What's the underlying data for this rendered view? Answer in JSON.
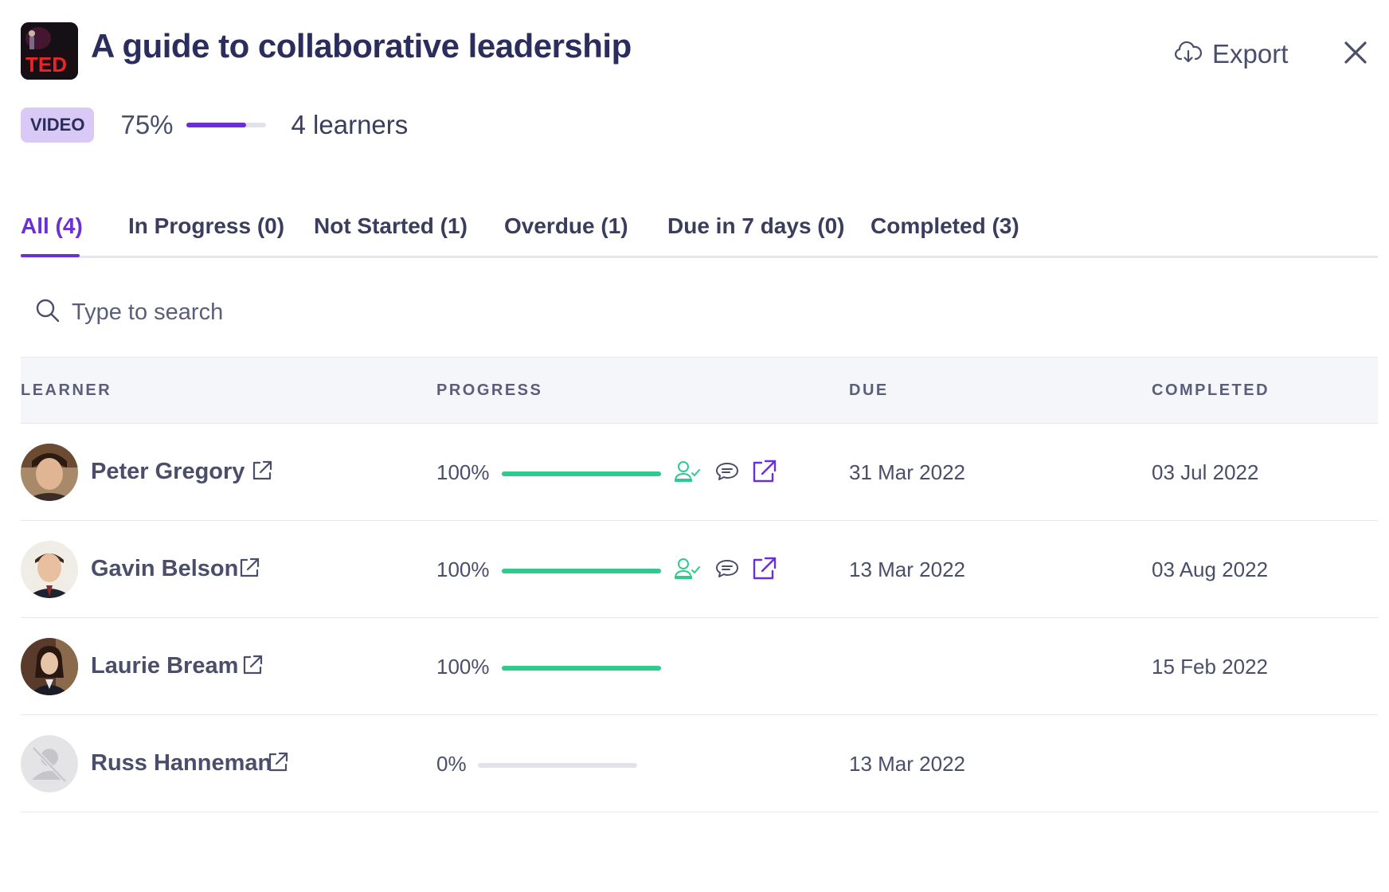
{
  "header": {
    "title": "A guide to collaborative leadership",
    "thumbnail_icon": "ted-talk-thumbnail",
    "export_label": "Export",
    "close_icon": "close-icon"
  },
  "meta": {
    "type_badge": "VIDEO",
    "progress_label": "75%",
    "progress_value": 75,
    "learners_label": "4 learners"
  },
  "tabs": [
    {
      "label": "All (4)",
      "active": true
    },
    {
      "label": "In Progress (0)",
      "active": false
    },
    {
      "label": "Not Started (1)",
      "active": false
    },
    {
      "label": "Overdue (1)",
      "active": false
    },
    {
      "label": "Due in 7 days (0)",
      "active": false
    },
    {
      "label": "Completed (3)",
      "active": false
    }
  ],
  "search": {
    "placeholder": "Type to search"
  },
  "table": {
    "columns": [
      "LEARNER",
      "PROGRESS",
      "DUE",
      "COMPLETED"
    ],
    "rows": [
      {
        "name": "Peter Gregory",
        "progress_label": "100%",
        "progress_value": 100,
        "due": "31 Mar 2022",
        "completed": "03 Jul 2022",
        "actions": true
      },
      {
        "name": "Gavin Belson",
        "progress_label": "100%",
        "progress_value": 100,
        "due": "13 Mar 2022",
        "completed": "03 Aug 2022",
        "actions": true
      },
      {
        "name": "Laurie Bream",
        "progress_label": "100%",
        "progress_value": 100,
        "due": "",
        "completed": "15 Feb 2022",
        "actions": false
      },
      {
        "name": "Russ Hanneman",
        "progress_label": "0%",
        "progress_value": 0,
        "due": "13 Mar 2022",
        "completed": "",
        "actions": false
      }
    ]
  },
  "colors": {
    "accent": "#6a2fd6",
    "progress_green": "#2ecb8c",
    "title": "#2b2d5c",
    "badge_bg": "#d9c9f7"
  }
}
